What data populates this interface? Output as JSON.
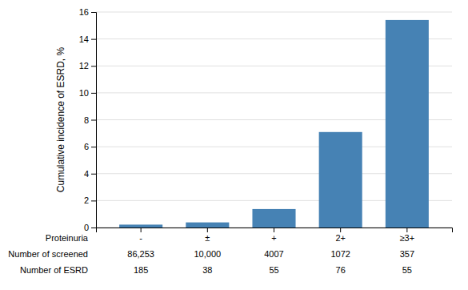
{
  "chart_data": {
    "type": "bar",
    "categories": [
      "-",
      "±",
      "+",
      "2+",
      "≥3+"
    ],
    "values": [
      0.2145,
      0.38,
      1.373,
      7.09,
      15.41
    ],
    "color": "steelblue",
    "ylabel": "Cumulative incidence of ESRD, %",
    "xlabel": "Proteinuria",
    "table": [
      {
        "name": "Number of screened",
        "values": [
          "86,253",
          "10,000",
          "4007",
          "1072",
          "357"
        ]
      },
      {
        "name": "Number of ESRD",
        "values": [
          "185",
          "38",
          "55",
          "76",
          "55"
        ]
      }
    ],
    "ylim": [
      0,
      16
    ],
    "yticks": [
      0,
      2,
      4,
      6,
      8,
      10,
      12,
      14,
      16
    ],
    "grid": true
  }
}
